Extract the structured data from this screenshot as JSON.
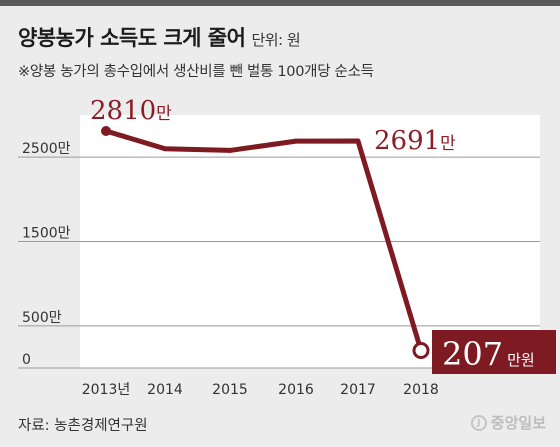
{
  "header": {
    "title": "양봉농가 소득도 크게 줄어",
    "unit": "단위: 원",
    "subtitle": "※양봉 농가의 총수입에서 생산비를 뺀 벌통 100개당 순소득"
  },
  "footer": {
    "source": "자료: 농촌경제연구원",
    "logo_text": "중앙일보"
  },
  "colors": {
    "line": "#7d1a22",
    "label": "#8b1e26",
    "callout_bg": "#7d1a22",
    "plot_bg": "#ffffff",
    "page_bg": "#ececec"
  },
  "chart_data": {
    "type": "line",
    "x": [
      "2013년",
      "2014",
      "2015",
      "2016",
      "2017",
      "2018"
    ],
    "values": [
      28100000,
      26000000,
      25800000,
      26900000,
      26910000,
      2070000
    ],
    "yticks": [
      {
        "value": 0,
        "label": "0"
      },
      {
        "value": 5000000,
        "label": "500만"
      },
      {
        "value": 15000000,
        "label": "1500만"
      },
      {
        "value": 25000000,
        "label": "2500만"
      }
    ],
    "ylim": [
      0,
      30000000
    ],
    "grid": true,
    "point_labels": [
      {
        "index": 0,
        "num": "2810",
        "suffix": "만"
      },
      {
        "index": 4,
        "num": "2691",
        "suffix": "만"
      },
      {
        "index": 5,
        "num": "207",
        "suffix": "만원"
      }
    ]
  }
}
